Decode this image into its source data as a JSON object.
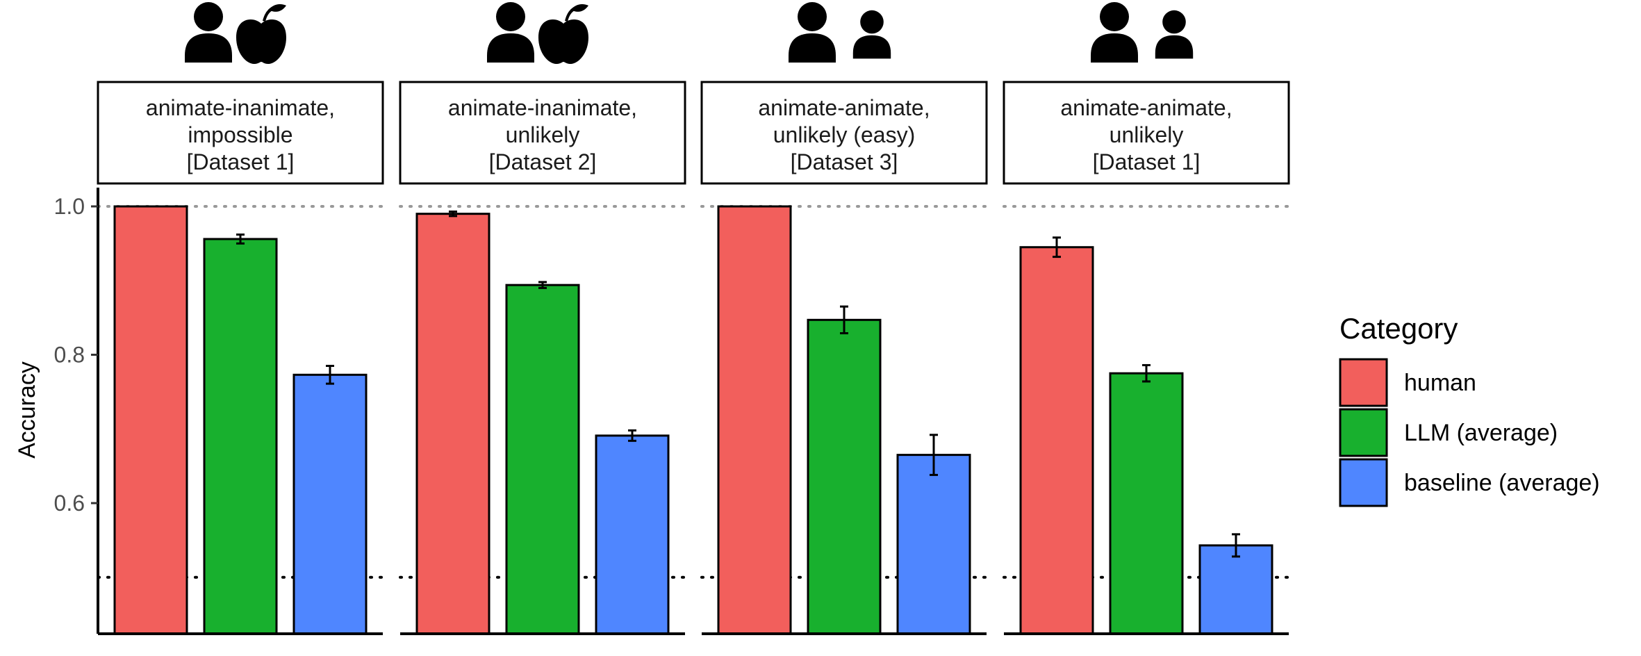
{
  "chart_data": {
    "type": "bar",
    "ylabel": "Accuracy",
    "ylim": [
      0.42,
      1.03
    ],
    "y_ticks": [
      0.6,
      0.8,
      1.0
    ],
    "y_tick_labels": [
      "0.6",
      "0.8",
      "1.0"
    ],
    "reference_lines": [
      {
        "value": 1.0,
        "style": "dotted",
        "color": "#999999"
      },
      {
        "value": 0.5,
        "style": "dotted",
        "color": "#000000"
      }
    ],
    "grid": false,
    "legend": {
      "title": "Category",
      "placement": "right",
      "entries": [
        {
          "label": "human",
          "color": "#F25F5C"
        },
        {
          "label": "LLM (average)",
          "color": "#18B02E"
        },
        {
          "label": "baseline (average)",
          "color": "#4F86FF"
        }
      ]
    },
    "series": [
      {
        "name": "human",
        "color": "#F25F5C"
      },
      {
        "name": "LLM (average)",
        "color": "#18B02E"
      },
      {
        "name": "baseline (average)",
        "color": "#4F86FF"
      }
    ],
    "panels": [
      {
        "title_lines": [
          "animate-inanimate,",
          "impossible",
          "[Dataset 1]"
        ],
        "icons": [
          "person-icon",
          "apple-icon"
        ],
        "values": [
          1.0,
          0.956,
          0.773
        ],
        "errors": [
          0.0,
          0.006,
          0.012
        ]
      },
      {
        "title_lines": [
          "animate-inanimate,",
          "unlikely",
          "[Dataset 2]"
        ],
        "icons": [
          "person-icon",
          "apple-icon"
        ],
        "values": [
          0.99,
          0.894,
          0.691
        ],
        "errors": [
          0.003,
          0.004,
          0.007
        ]
      },
      {
        "title_lines": [
          "animate-animate,",
          "unlikely (easy)",
          "[Dataset 3]"
        ],
        "icons": [
          "person-icon",
          "person-small-icon"
        ],
        "values": [
          1.0,
          0.847,
          0.665
        ],
        "errors": [
          0.0,
          0.018,
          0.027
        ]
      },
      {
        "title_lines": [
          "animate-animate,",
          "unlikely",
          "[Dataset 1]"
        ],
        "icons": [
          "person-icon",
          "person-small-icon"
        ],
        "values": [
          0.945,
          0.775,
          0.543
        ],
        "errors": [
          0.013,
          0.011,
          0.015
        ]
      }
    ]
  }
}
